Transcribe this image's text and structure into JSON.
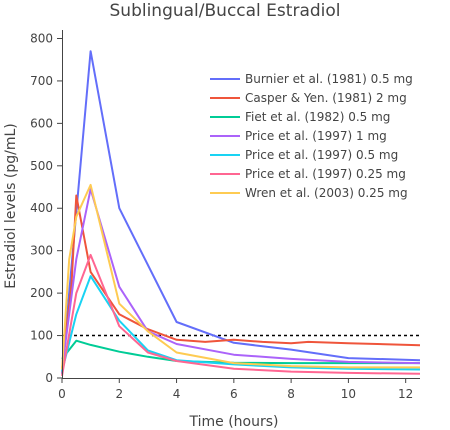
{
  "chart_data": {
    "type": "line",
    "title": "Sublingual/Buccal Estradiol",
    "xlabel": "Time (hours)",
    "ylabel": "Estradiol levels (pg/mL)",
    "xlim": [
      0,
      12.5
    ],
    "ylim": [
      0,
      820
    ],
    "xticks": [
      0,
      2,
      4,
      6,
      8,
      10,
      12
    ],
    "yticks": [
      0,
      100,
      200,
      300,
      400,
      500,
      600,
      700,
      800
    ],
    "reference_line": {
      "y": 100,
      "style": "dotted"
    },
    "grid": false,
    "legend_position": "top-right",
    "series": [
      {
        "name": "Burnier et al. (1981) 0.5 mg",
        "color": "#636efa",
        "x": [
          0,
          1,
          2,
          4,
          6,
          8,
          10,
          12.5
        ],
        "y": [
          10,
          770,
          400,
          132,
          83,
          67,
          47,
          42
        ]
      },
      {
        "name": "Casper & Yen. (1981) 2 mg",
        "color": "#ef553b",
        "x": [
          0,
          0.33,
          0.5,
          1,
          2,
          3,
          4,
          5,
          6,
          7,
          8,
          8.6,
          10,
          12.5
        ],
        "y": [
          20,
          220,
          430,
          250,
          150,
          115,
          90,
          85,
          90,
          85,
          82,
          85,
          82,
          77
        ]
      },
      {
        "name": "Fiet et al. (1982) 0.5 mg",
        "color": "#00cc96",
        "x": [
          0,
          0.5,
          1,
          2,
          3,
          4,
          6,
          8,
          10,
          12.5
        ],
        "y": [
          45,
          88,
          78,
          62,
          50,
          40,
          36,
          35,
          35,
          35
        ]
      },
      {
        "name": "Price et al. (1997) 1 mg",
        "color": "#ab63fa",
        "x": [
          0,
          0.5,
          1,
          2,
          3,
          4,
          6,
          8,
          10,
          12.5
        ],
        "y": [
          20,
          280,
          445,
          215,
          110,
          80,
          55,
          45,
          38,
          35
        ]
      },
      {
        "name": "Price et al. (1997) 0.5 mg",
        "color": "#19d3f3",
        "x": [
          0,
          0.5,
          1,
          2,
          3,
          4,
          6,
          8,
          10,
          12.5
        ],
        "y": [
          15,
          150,
          240,
          135,
          65,
          42,
          32,
          25,
          22,
          20
        ]
      },
      {
        "name": "Price et al. (1997) 0.25 mg",
        "color": "#ff6692",
        "x": [
          0,
          0.5,
          1,
          2,
          3,
          4,
          6,
          8,
          10,
          12.5
        ],
        "y": [
          5,
          200,
          290,
          122,
          60,
          40,
          22,
          15,
          12,
          10
        ]
      },
      {
        "name": "Wren et al. (2003) 0.25 mg",
        "color": "#fecb52",
        "x": [
          0,
          0.25,
          0.5,
          1,
          2,
          3,
          4,
          6,
          8,
          10,
          12.5
        ],
        "y": [
          20,
          280,
          380,
          455,
          175,
          110,
          60,
          35,
          28,
          25,
          25
        ]
      }
    ]
  }
}
